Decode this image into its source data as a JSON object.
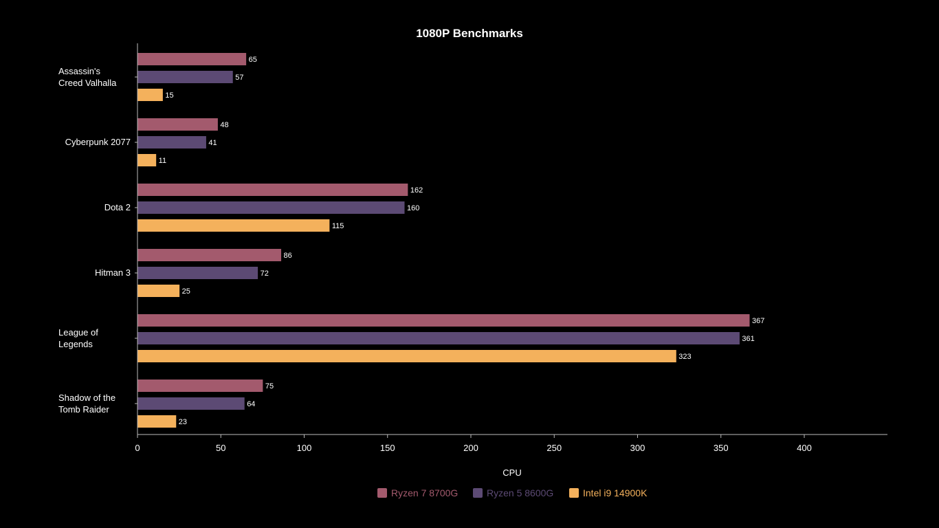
{
  "chart_data": {
    "type": "bar",
    "orientation": "horizontal",
    "title": "1080P Benchmarks",
    "xlabel": "CPU",
    "ylabel": "",
    "xlim": [
      0,
      450
    ],
    "xticks": [
      0,
      50,
      100,
      150,
      200,
      250,
      300,
      350,
      400
    ],
    "categories": [
      [
        "Assassin's",
        "Creed Valhalla"
      ],
      [
        "Cyberpunk 2077"
      ],
      [
        "Dota 2"
      ],
      [
        "Hitman 3"
      ],
      [
        "League of",
        "Legends"
      ],
      [
        "Shadow of the",
        "Tomb Raider"
      ]
    ],
    "series": [
      {
        "name": "Ryzen 7 8700G",
        "color": "#a35a6d",
        "values": [
          65,
          48,
          162,
          86,
          367,
          75
        ]
      },
      {
        "name": "Ryzen 5 8600G",
        "color": "#5c4a74",
        "values": [
          57,
          41,
          160,
          72,
          361,
          64
        ]
      },
      {
        "name": "Intel i9 14900K",
        "color": "#f4b15c",
        "values": [
          15,
          11,
          115,
          25,
          323,
          23
        ]
      }
    ],
    "grid": false,
    "legend_position": "bottom",
    "data_labels": true
  }
}
